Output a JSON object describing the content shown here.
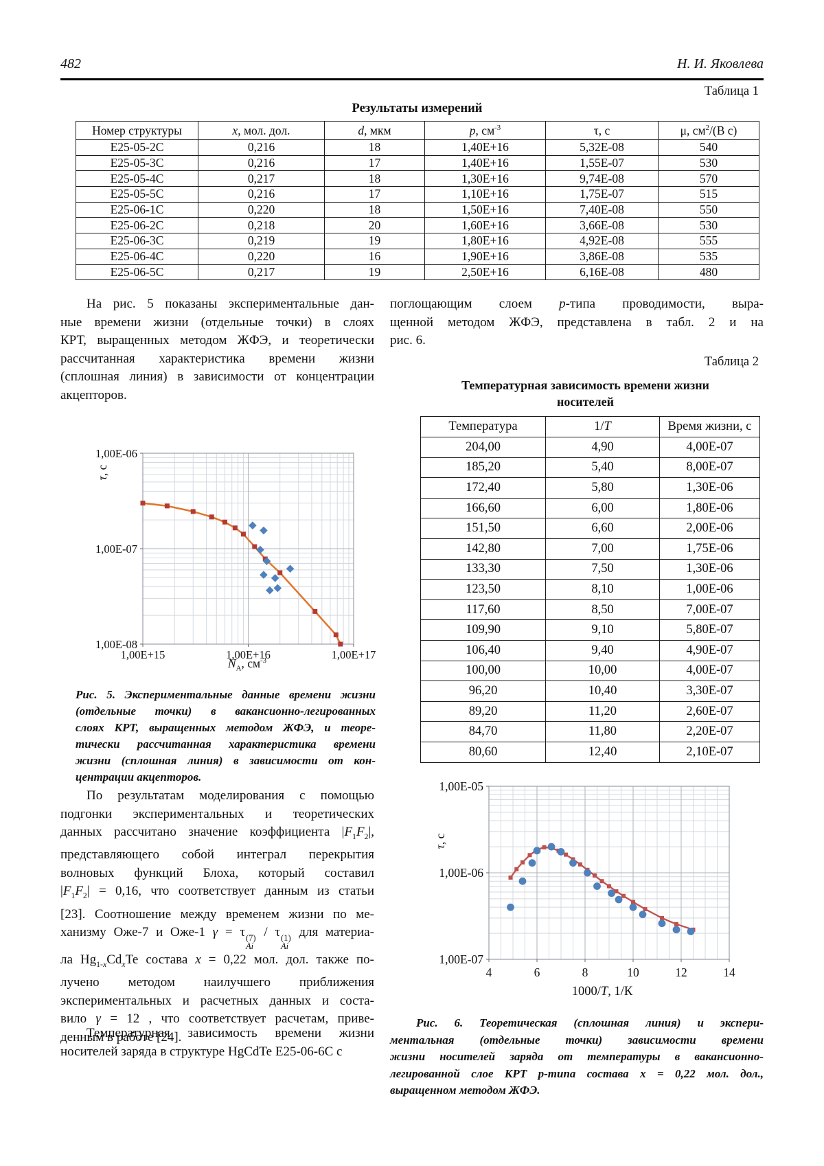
{
  "page": {
    "number": "482",
    "author": "Н. И. Яковлева"
  },
  "table1": {
    "label": "Таблица 1",
    "title": "Результаты измерений",
    "columns": [
      "Номер структуры",
      "<i>x</i>, мол. дол.",
      "<i>d</i>, мкм",
      "<i>p</i>, см<sup>-3</sup>",
      "τ, с",
      "μ, см<sup>2</sup>/(В с)"
    ],
    "rows": [
      [
        "Е25-05-2С",
        "0,216",
        "18",
        "1,40Е+16",
        "5,32Е-08",
        "540"
      ],
      [
        "Е25-05-3С",
        "0,216",
        "17",
        "1,40Е+16",
        "1,55Е-07",
        "530"
      ],
      [
        "Е25-05-4С",
        "0,217",
        "18",
        "1,30Е+16",
        "9,74Е-08",
        "570"
      ],
      [
        "Е25-05-5С",
        "0,216",
        "17",
        "1,10Е+16",
        "1,75Е-07",
        "515"
      ],
      [
        "Е25-06-1С",
        "0,220",
        "18",
        "1,50Е+16",
        "7,40Е-08",
        "550"
      ],
      [
        "Е25-06-2С",
        "0,218",
        "20",
        "1,60Е+16",
        "3,66Е-08",
        "530"
      ],
      [
        "Е25-06-3С",
        "0,219",
        "19",
        "1,80Е+16",
        "4,92Е-08",
        "555"
      ],
      [
        "Е25-06-4С",
        "0,220",
        "16",
        "1,90Е+16",
        "3,86Е-08",
        "535"
      ],
      [
        "Е25-06-5С",
        "0,217",
        "19",
        "2,50Е+16",
        "6,16Е-08",
        "480"
      ]
    ]
  },
  "body": {
    "p1_lines": [
      "На рис. 5 показаны экспериментальные дан-",
      "ные времени жизни (отдельные точки) в слоях",
      "КРТ, выращенных методом ЖФЭ, и теоретически",
      "рассчитанная характеристика времени жизни",
      "(сплошная линия) в зависимости от концентрации",
      "акцепторов."
    ],
    "p_right_lines": [
      "поглощающим слоем <i>р</i>-типа проводимости, выра-",
      "щенной методом ЖФЭ, представлена в табл. 2 и на",
      "рис. 6."
    ],
    "p2_lines": [
      "По результатам моделирования с помощью",
      "подгонки экспериментальных и теоретических",
      "данных рассчитано значение коэффициента |<i>F</i><sub>1</sub><i>F</i><sub>2</sub>|,",
      "представляющего собой интеграл перекрытия",
      "волновых функций Блоха, который составил",
      "|<i>F</i><sub>1</sub><i>F</i><sub>2</sub>| = 0,16, что соответствует данным из статьи",
      "[23]. Соотношение между временем жизни по ме-",
      "ханизму Оже-7 и Оже-1 <i>γ</i> = τ<span class='ss'><sup>(7)</sup><sub><i>Ai</i></sub></span> / τ<span class='ss'><sup>(1)</sup><sub><i>Ai</i></sub></span> для материа-",
      "ла Hg<sub>1-<i>x</i></sub>Cd<sub><i>x</i></sub>Te состава <i>x</i> = 0,22 мол. дол. также по-",
      "лучено методом наилучшего приближения",
      "экспериментальных и расчетных данных и соста-",
      "вило <i>γ</i> = 12 , что соответствует расчетам, приве-",
      "денным в работе [24]."
    ],
    "p3_lines": [
      "Температурная зависимость времени жизни",
      "носителей заряда в структуре HgCdTe Е25-06-6С с"
    ]
  },
  "table2": {
    "label": "Таблица 2",
    "title_lines": [
      "Температурная зависимость времени жизни",
      "носителей"
    ],
    "columns": [
      "Температура",
      "1/<i>T</i>",
      "Время жизни, с"
    ],
    "rows": [
      [
        "204,00",
        "4,90",
        "4,00Е-07"
      ],
      [
        "185,20",
        "5,40",
        "8,00Е-07"
      ],
      [
        "172,40",
        "5,80",
        "1,30Е-06"
      ],
      [
        "166,60",
        "6,00",
        "1,80Е-06"
      ],
      [
        "151,50",
        "6,60",
        "2,00Е-06"
      ],
      [
        "142,80",
        "7,00",
        "1,75Е-06"
      ],
      [
        "133,30",
        "7,50",
        "1,30Е-06"
      ],
      [
        "123,50",
        "8,10",
        "1,00Е-06"
      ],
      [
        "117,60",
        "8,50",
        "7,00Е-07"
      ],
      [
        "109,90",
        "9,10",
        "5,80Е-07"
      ],
      [
        "106,40",
        "9,40",
        "4,90Е-07"
      ],
      [
        "100,00",
        "10,00",
        "4,00Е-07"
      ],
      [
        "96,20",
        "10,40",
        "3,30Е-07"
      ],
      [
        "89,20",
        "11,20",
        "2,60Е-07"
      ],
      [
        "84,70",
        "11,80",
        "2,20Е-07"
      ],
      [
        "80,60",
        "12,40",
        "2,10Е-07"
      ]
    ]
  },
  "figures": {
    "fig5": {
      "ylabel_rich": "<i>τ</i>, с",
      "xlabel_rich": "<i>N</i><sub>А</sub>, см<sup>-3</sup>",
      "caption_lines": [
        "Рис. 5. Экспериментальные данные времени жизни",
        "(отдельные точки) в вакансионно-легированных",
        "слоях КРТ, выращенных методом ЖФЭ, и теоре-",
        "тически рассчитанная характеристика времени",
        "жизни (сплошная линия) в зависимости от кон-",
        "центрации акцепторов."
      ]
    },
    "fig6": {
      "ylabel_rich": "<i>τ</i>, с",
      "xlabel_rich": "1000/<i>T</i>, 1/К",
      "caption_lines": [
        "Рис. 6. Теоретическая (сплошная линия) и экспери-",
        "ментальная (отдельные точки) зависимости времени",
        "жизни носителей заряда от температуры в вакансионно-",
        "легированной слое КРТ <i>р</i>-типа состава <i>x</i> = 0,22 мол. дол.,",
        "выращенном методом ЖФЭ."
      ]
    }
  },
  "chart_data": [
    {
      "id": "fig5",
      "type": "line",
      "title": "",
      "xlabel": "N_A, см^-3",
      "ylabel": "τ, с",
      "xscale": "log",
      "yscale": "log",
      "xlim": [
        1000000000000000.0,
        1e+17
      ],
      "ylim": [
        1e-08,
        1e-06
      ],
      "grid": true,
      "legend": "none",
      "x_ticks": [
        {
          "v": 1000000000000000.0,
          "label": "1,00Е+15"
        },
        {
          "v": 1e+16,
          "label": "1,00Е+16"
        },
        {
          "v": 1e+17,
          "label": "1,00Е+17"
        }
      ],
      "y_ticks": [
        {
          "v": 1e-06,
          "label": "1,00Е-06"
        },
        {
          "v": 1e-07,
          "label": "1,00Е-07"
        },
        {
          "v": 1e-08,
          "label": "1,00Е-08"
        }
      ],
      "series": [
        {
          "name": "теоретически рассчитанная характеристика (сплошная линия)",
          "kind": "line",
          "marker": "square",
          "line_color": "#E0762F",
          "marker_color": "#B43B32",
          "points": [
            [
              1000000000000000.0,
              3e-07
            ],
            [
              1700000000000000.0,
              2.8e-07
            ],
            [
              3000000000000000.0,
              2.45e-07
            ],
            [
              4500000000000000.0,
              2.15e-07
            ],
            [
              6000000000000000.0,
              1.9e-07
            ],
            [
              7500000000000000.0,
              1.65e-07
            ],
            [
              9000000000000000.0,
              1.42e-07
            ],
            [
              1.15e+16,
              1.05e-07
            ],
            [
              1.45e+16,
              7.8e-08
            ],
            [
              2e+16,
              5.6e-08
            ],
            [
              4.3e+16,
              2.2e-08
            ],
            [
              6.8e+16,
              1.25e-08
            ],
            [
              7.5e+16,
              1e-08
            ]
          ]
        },
        {
          "name": "экспериментальные данные (отдельные точки)",
          "kind": "scatter",
          "marker": "diamond",
          "marker_color": "#4F81BD",
          "points": [
            [
              1.1e+16,
              1.75e-07
            ],
            [
              1.3e+16,
              9.74e-08
            ],
            [
              1.4e+16,
              1.55e-07
            ],
            [
              1.4e+16,
              5.32e-08
            ],
            [
              1.5e+16,
              7.4e-08
            ],
            [
              1.6e+16,
              3.66e-08
            ],
            [
              1.8e+16,
              4.92e-08
            ],
            [
              1.9e+16,
              3.86e-08
            ],
            [
              2.5e+16,
              6.16e-08
            ]
          ]
        }
      ]
    },
    {
      "id": "fig6",
      "type": "line",
      "title": "",
      "xlabel": "1000/T, 1/К",
      "ylabel": "τ, с",
      "xscale": "linear",
      "yscale": "log",
      "xlim": [
        4,
        14
      ],
      "ylim": [
        1e-07,
        1e-05
      ],
      "x_minor_step": 0.5,
      "grid": true,
      "legend": "none",
      "x_ticks": [
        {
          "v": 4,
          "label": "4"
        },
        {
          "v": 6,
          "label": "6"
        },
        {
          "v": 8,
          "label": "8"
        },
        {
          "v": 10,
          "label": "10"
        },
        {
          "v": 12,
          "label": "12"
        },
        {
          "v": 14,
          "label": "14"
        }
      ],
      "y_ticks": [
        {
          "v": 1e-05,
          "label": "1,00Е-05"
        },
        {
          "v": 1e-06,
          "label": "1,00Е-06"
        },
        {
          "v": 1e-07,
          "label": "1,00Е-07"
        }
      ],
      "series": [
        {
          "name": "теоретическая (сплошная линия)",
          "kind": "line",
          "marker": "square",
          "line_color": "#C0504D",
          "marker_color": "#C0504D",
          "points": [
            [
              4.9,
              8.8e-07
            ],
            [
              5.15,
              1.1e-06
            ],
            [
              5.4,
              1.32e-06
            ],
            [
              5.7,
              1.6e-06
            ],
            [
              6.0,
              1.85e-06
            ],
            [
              6.3,
              1.97e-06
            ],
            [
              6.6,
              1.93e-06
            ],
            [
              6.9,
              1.8e-06
            ],
            [
              7.2,
              1.62e-06
            ],
            [
              7.5,
              1.43e-06
            ],
            [
              7.8,
              1.25e-06
            ],
            [
              8.1,
              1.08e-06
            ],
            [
              8.4,
              9.3e-07
            ],
            [
              8.7,
              8e-07
            ],
            [
              9.0,
              7e-07
            ],
            [
              9.3,
              6.1e-07
            ],
            [
              9.6,
              5.4e-07
            ],
            [
              10.0,
              4.6e-07
            ],
            [
              10.5,
              3.8e-07
            ],
            [
              11.2,
              3e-07
            ],
            [
              11.8,
              2.55e-07
            ],
            [
              12.5,
              2.2e-07
            ]
          ]
        },
        {
          "name": "экспериментальная (отдельные точки)",
          "kind": "scatter",
          "marker": "circle",
          "marker_color": "#4F81BD",
          "points": [
            [
              4.9,
              4e-07
            ],
            [
              5.4,
              8e-07
            ],
            [
              5.8,
              1.3e-06
            ],
            [
              6.0,
              1.8e-06
            ],
            [
              6.6,
              2e-06
            ],
            [
              7.0,
              1.75e-06
            ],
            [
              7.5,
              1.3e-06
            ],
            [
              8.1,
              1e-06
            ],
            [
              8.5,
              7e-07
            ],
            [
              9.1,
              5.8e-07
            ],
            [
              9.4,
              4.9e-07
            ],
            [
              10.0,
              4e-07
            ],
            [
              10.4,
              3.3e-07
            ],
            [
              11.2,
              2.6e-07
            ],
            [
              11.8,
              2.2e-07
            ],
            [
              12.4,
              2.1e-07
            ]
          ]
        }
      ]
    }
  ]
}
